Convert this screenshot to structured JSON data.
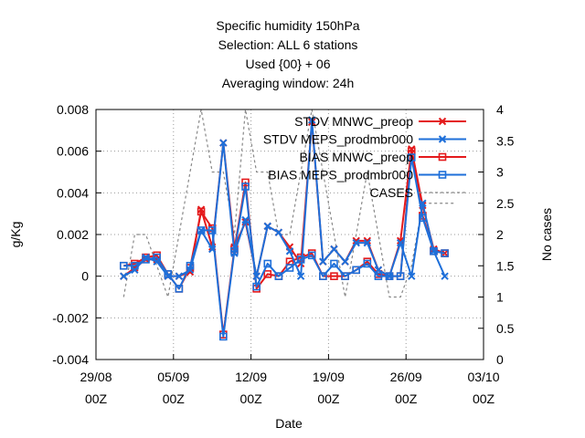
{
  "title_lines": [
    "Specific humidity 150hPa",
    "Selection: ALL      6 stations",
    "Used {00} + 06",
    "Averaging window: 24h"
  ],
  "chart_data": {
    "type": "line",
    "xlabel": "Date",
    "ylabel": "g/Kg",
    "y2label": "No cases",
    "xlim": [
      "2025-08-29 00:00",
      "2025-10-03 00:00"
    ],
    "ylim": [
      -0.004,
      0.008
    ],
    "y2lim": [
      0,
      4
    ],
    "x_ticks": [
      {
        "value": "2025-08-29 00:00",
        "line1": "29/08",
        "line2": "00Z"
      },
      {
        "value": "2025-09-05 00:00",
        "line1": "05/09",
        "line2": "00Z"
      },
      {
        "value": "2025-09-12 00:00",
        "line1": "12/09",
        "line2": "00Z"
      },
      {
        "value": "2025-09-19 00:00",
        "line1": "19/09",
        "line2": "00Z"
      },
      {
        "value": "2025-09-26 00:00",
        "line1": "26/09",
        "line2": "00Z"
      },
      {
        "value": "2025-10-03 00:00",
        "line1": "03/10",
        "line2": "00Z"
      }
    ],
    "y_ticks": [
      {
        "value": -0.004,
        "label": "-0.004"
      },
      {
        "value": -0.002,
        "label": "-0.002"
      },
      {
        "value": 0,
        "label": "0"
      },
      {
        "value": 0.002,
        "label": "0.002"
      },
      {
        "value": 0.004,
        "label": "0.004"
      },
      {
        "value": 0.006,
        "label": "0.006"
      },
      {
        "value": 0.008,
        "label": "0.008"
      }
    ],
    "y2_ticks": [
      {
        "value": 0,
        "label": "0"
      },
      {
        "value": 0.5,
        "label": "0.5"
      },
      {
        "value": 1,
        "label": "1"
      },
      {
        "value": 1.5,
        "label": "1.5"
      },
      {
        "value": 2,
        "label": "2"
      },
      {
        "value": 2.5,
        "label": "2.5"
      },
      {
        "value": 3,
        "label": "3"
      },
      {
        "value": 3.5,
        "label": "3.5"
      },
      {
        "value": 4,
        "label": "4"
      }
    ],
    "grid": true,
    "legend_position": "top-right",
    "x": [
      "2025-08-31 12:00",
      "2025-09-01 12:00",
      "2025-09-02 12:00",
      "2025-09-03 12:00",
      "2025-09-04 12:00",
      "2025-09-05 12:00",
      "2025-09-06 12:00",
      "2025-09-07 12:00",
      "2025-09-08 12:00",
      "2025-09-09 12:00",
      "2025-09-10 12:00",
      "2025-09-11 12:00",
      "2025-09-12 12:00",
      "2025-09-13 12:00",
      "2025-09-14 12:00",
      "2025-09-15 12:00",
      "2025-09-16 12:00",
      "2025-09-17 12:00",
      "2025-09-18 12:00",
      "2025-09-19 12:00",
      "2025-09-20 12:00",
      "2025-09-21 12:00",
      "2025-09-22 12:00",
      "2025-09-23 12:00",
      "2025-09-24 12:00",
      "2025-09-25 12:00",
      "2025-09-26 12:00",
      "2025-09-27 12:00",
      "2025-09-28 12:00",
      "2025-09-29 12:00",
      "2025-09-30 12:00"
    ],
    "series": [
      {
        "name": "STDV MNWC_preop",
        "color": "#e41a1c",
        "marker": "x",
        "axis": "y1",
        "values": [
          0.0,
          0.0004,
          0.0008,
          0.0008,
          0.0,
          0.0,
          0.0002,
          0.0032,
          0.0014,
          0.0064,
          0.0014,
          0.0026,
          0.0,
          0.0024,
          0.0021,
          0.0014,
          0.0006,
          0.0074,
          0.0007,
          0.0013,
          0.0007,
          0.0017,
          0.0017,
          0.0003,
          0.0,
          0.0017,
          0.0061,
          0.0034,
          0.0013,
          0.0011,
          null
        ]
      },
      {
        "name": "STDV MEPS_prodmbr000",
        "color": "#1e6fd9",
        "marker": "x",
        "axis": "y1",
        "values": [
          0.0,
          0.0003,
          0.0009,
          0.0007,
          0.0,
          0.0,
          0.0003,
          0.0022,
          0.0013,
          0.0064,
          0.0011,
          0.0027,
          0.0,
          0.0024,
          0.0021,
          0.0012,
          0.0,
          0.0075,
          0.0007,
          0.0013,
          0.0007,
          0.0016,
          0.0016,
          0.0003,
          0.0,
          0.0016,
          0.0,
          0.0035,
          0.0012,
          0.0,
          null
        ]
      },
      {
        "name": "BIAS MNWC_preop",
        "color": "#e41a1c",
        "marker": "square",
        "axis": "y1",
        "values": [
          0.0005,
          0.0006,
          0.0009,
          0.001,
          0.0001,
          -0.0006,
          0.0004,
          0.0031,
          0.0023,
          -0.0028,
          0.0013,
          0.0045,
          -0.0006,
          0.0001,
          0.0,
          0.0007,
          0.0009,
          0.0011,
          0.0,
          0.0,
          0.0,
          0.0003,
          0.0007,
          0.0001,
          0.0,
          0.0,
          0.006,
          0.0029,
          0.0012,
          0.0011,
          null
        ]
      },
      {
        "name": "BIAS MEPS_prodmbr000",
        "color": "#1e6fd9",
        "marker": "square",
        "axis": "y1",
        "values": [
          0.0005,
          0.0005,
          0.0008,
          0.0009,
          0.0001,
          -0.0006,
          0.0005,
          0.0022,
          0.0022,
          -0.0029,
          0.0012,
          0.0043,
          -0.0005,
          0.0006,
          0.0,
          0.0004,
          0.0008,
          0.001,
          0.0,
          0.0006,
          0.0,
          0.0003,
          0.0006,
          0.0,
          0.0,
          0.0,
          0.0057,
          0.0028,
          0.0012,
          0.0011,
          null
        ]
      },
      {
        "name": "CASES",
        "color": "#888888",
        "marker": "none",
        "dashed": true,
        "axis": "y2",
        "values": [
          1,
          2,
          2,
          1.5,
          1,
          2,
          3,
          4,
          3,
          3,
          2,
          4,
          3,
          3,
          2,
          2,
          3,
          4,
          3,
          2,
          1,
          2,
          3,
          2,
          1,
          1,
          1.5,
          2.5,
          2.5,
          2.5,
          2.5
        ]
      }
    ]
  }
}
